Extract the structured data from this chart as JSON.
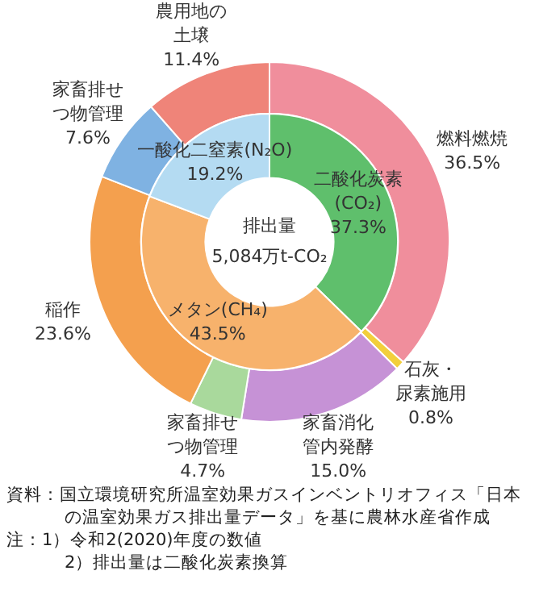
{
  "chart_data": [
    {
      "type": "donut",
      "legend": false,
      "categories": [
        "燃料燃焼",
        "石灰・尿素施用",
        "家畜消化管内発酵",
        "家畜排せつ物管理",
        "稲作",
        "家畜排せつ物管理",
        "農用地の土壌"
      ],
      "values": [
        36.5,
        0.8,
        15.0,
        4.7,
        23.6,
        7.6,
        11.4
      ],
      "colors": [
        "#f08e9c",
        "#f2cf3c",
        "#c692d6",
        "#a9d99c",
        "#f4a04e",
        "#7fb2e2",
        "#ef8479"
      ],
      "value_labels": [
        "36.5%",
        "0.8%",
        "15.0%",
        "4.7%",
        "23.6%",
        "7.6%",
        "11.4%"
      ],
      "annotations": [
        "資料：国立環境研究所温室効果ガスインベントリオフィス「日本の温室効果ガス排出量データ」を基に農林水産省作成",
        "注：1）令和2(2020)年度の数値",
        "2）排出量は二酸化炭素換算"
      ]
    },
    {
      "type": "donut",
      "legend": false,
      "categories": [
        "二酸化炭素(CO₂)",
        "メタン(CH₄)",
        "一酸化二窒素(N₂O)"
      ],
      "values": [
        37.3,
        43.5,
        19.2
      ],
      "colors": [
        "#5fbf6c",
        "#f7b26c",
        "#b4dbf2"
      ],
      "value_labels": [
        "37.3%",
        "43.5%",
        "19.2%"
      ],
      "annotations": [
        "排出量",
        "5,084万t-CO₂"
      ]
    }
  ]
}
